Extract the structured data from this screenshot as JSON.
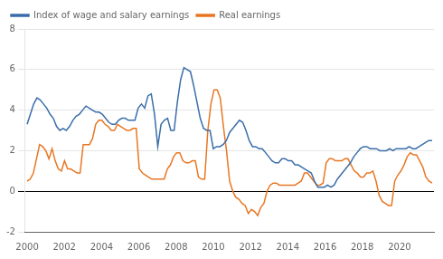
{
  "chart_data": {
    "type": "line",
    "series": [
      {
        "name": "Index of wage and salary earnings",
        "color": "#3a6eaa",
        "x": [
          2000,
          2000.175403,
          2000.350806,
          2000.52621,
          2000.701613,
          2000.877016,
          2001.052419,
          2001.227823,
          2001.403226,
          2001.578629,
          2001.754032,
          2001.929435,
          2002.104839,
          2002.280242,
          2002.455645,
          2002.631048,
          2002.806452,
          2002.981855,
          2003.157258,
          2003.332661,
          2003.508065,
          2003.683468,
          2003.858871,
          2004.034274,
          2004.209677,
          2004.385081,
          2004.560484,
          2004.735887,
          2004.91129,
          2005.086694,
          2005.262097,
          2005.4375,
          2005.612903,
          2005.788306,
          2005.96371,
          2006.139113,
          2006.314516,
          2006.489919,
          2006.665323,
          2006.840726,
          2007.016129,
          2007.191532,
          2007.366935,
          2007.542339,
          2007.717742,
          2007.893145,
          2008.068548,
          2008.243952,
          2008.419355,
          2008.594758,
          2008.770161,
          2008.945565,
          2009.120968,
          2009.296371,
          2009.471774,
          2009.647177,
          2009.822581,
          2009.997984,
          2010.173387,
          2010.34879,
          2010.524194,
          2010.699597,
          2010.875,
          2011.050403,
          2011.225806,
          2011.40121,
          2011.576613,
          2011.752016,
          2011.927419,
          2012.102823,
          2012.278226,
          2012.453629,
          2012.629032,
          2012.804435,
          2012.979839,
          2013.155242,
          2013.330645,
          2013.506048,
          2013.681452,
          2013.856855,
          2014.032258,
          2014.207661,
          2014.383065,
          2014.558468,
          2014.733871,
          2014.909274,
          2015.084677,
          2015.260081,
          2015.435484,
          2015.610887,
          2015.78629,
          2015.961694,
          2016.137097,
          2016.3125,
          2016.487903,
          2016.663306,
          2016.83871,
          2017.014113,
          2017.189516,
          2017.364919,
          2017.540323,
          2017.715726,
          2017.891129,
          2018.066532,
          2018.241935,
          2018.417339,
          2018.592742,
          2018.768145,
          2018.943548,
          2019.118952,
          2019.294355,
          2019.469758,
          2019.645161,
          2019.820565,
          2019.995968,
          2020.171371,
          2020.346774,
          2020.522177,
          2020.697581,
          2020.872984,
          2021.048387,
          2021.22379,
          2021.399194,
          2021.574597,
          2021.75
        ],
        "values": [
          3.3,
          3.8,
          4.3,
          4.6,
          4.5,
          4.3,
          4.1,
          3.8,
          3.6,
          3.2,
          3.0,
          3.1,
          3.0,
          3.2,
          3.5,
          3.7,
          3.8,
          4.0,
          4.2,
          4.1,
          4.0,
          3.9,
          3.9,
          3.8,
          3.6,
          3.4,
          3.3,
          3.3,
          3.5,
          3.6,
          3.6,
          3.5,
          3.5,
          3.5,
          4.1,
          4.3,
          4.1,
          4.7,
          4.8,
          3.8,
          2.2,
          3.3,
          3.5,
          3.6,
          3.0,
          3.0,
          4.4,
          5.5,
          6.1,
          6.0,
          5.9,
          5.2,
          4.4,
          3.6,
          3.1,
          3.0,
          3.0,
          2.1,
          2.2,
          2.2,
          2.3,
          2.5,
          2.9,
          3.1,
          3.3,
          3.5,
          3.4,
          3.0,
          2.5,
          2.2,
          2.2,
          2.1,
          2.1,
          1.9,
          1.7,
          1.5,
          1.4,
          1.4,
          1.6,
          1.6,
          1.5,
          1.5,
          1.3,
          1.3,
          1.2,
          1.1,
          1.0,
          0.9,
          0.5,
          0.2,
          0.2,
          0.2,
          0.3,
          0.2,
          0.3,
          0.6,
          0.8,
          1.0,
          1.2,
          1.4,
          1.7,
          1.9,
          2.1,
          2.2,
          2.2,
          2.1,
          2.1,
          2.1,
          2.0,
          2.0,
          2.0,
          2.1,
          2.0,
          2.1,
          2.1,
          2.1,
          2.1,
          2.2,
          2.1,
          2.1,
          2.2,
          2.3,
          2.4,
          2.5,
          2.5
        ]
      },
      {
        "name": "Real earnings",
        "color": "#e87722",
        "x": [
          2000,
          2000.167308,
          2000.334615,
          2000.501923,
          2000.669231,
          2000.836538,
          2001.003846,
          2001.171154,
          2001.338462,
          2001.505769,
          2001.673077,
          2001.840385,
          2002.007692,
          2002.175,
          2002.342308,
          2002.509615,
          2002.676923,
          2002.844231,
          2003.011538,
          2003.178846,
          2003.346154,
          2003.513462,
          2003.680769,
          2003.848077,
          2004.015385,
          2004.182692,
          2004.35,
          2004.517308,
          2004.684615,
          2004.851923,
          2005.019231,
          2005.186538,
          2005.353846,
          2005.521154,
          2005.688462,
          2005.855769,
          2006.023077,
          2006.190385,
          2006.357692,
          2006.525,
          2006.692308,
          2006.859615,
          2007.026923,
          2007.194231,
          2007.361538,
          2007.528846,
          2007.696154,
          2007.863462,
          2008.030769,
          2008.198077,
          2008.365385,
          2008.532692,
          2008.7,
          2008.867308,
          2009.034615,
          2009.201923,
          2009.369231,
          2009.536538,
          2009.703846,
          2009.871154,
          2010.038462,
          2010.205769,
          2010.373077,
          2010.540385,
          2010.707692,
          2010.875,
          2011.042308,
          2011.209615,
          2011.376923,
          2011.544231,
          2011.711538,
          2011.878846,
          2012.046154,
          2012.213462,
          2012.380769,
          2012.548077,
          2012.715385,
          2012.882692,
          2013.05,
          2013.217308,
          2013.384615,
          2013.551923,
          2013.719231,
          2013.886538,
          2014.053846,
          2014.221154,
          2014.388462,
          2014.555769,
          2014.723077,
          2014.890385,
          2015.057692,
          2015.225,
          2015.392308,
          2015.559615,
          2015.726923,
          2015.894231,
          2016.061538,
          2016.228846,
          2016.396154,
          2016.563462,
          2016.730769,
          2016.898077,
          2017.065385,
          2017.232692,
          2017.4,
          2017.567308,
          2017.734615,
          2017.901923,
          2018.069231,
          2018.236538,
          2018.403846,
          2018.571154,
          2018.738462,
          2018.905769,
          2019.073077,
          2019.240385,
          2019.407692,
          2019.575,
          2019.742308,
          2019.909615,
          2020.076923,
          2020.244231,
          2020.411538,
          2020.578846,
          2020.746154,
          2020.913462,
          2021.080769,
          2021.248077,
          2021.415385,
          2021.582692,
          2021.75
        ],
        "values": [
          0.5,
          0.6,
          0.9,
          1.6,
          2.3,
          2.2,
          2.0,
          1.6,
          2.1,
          1.5,
          1.1,
          1.0,
          1.5,
          1.1,
          1.1,
          1.0,
          0.9,
          0.9,
          2.3,
          2.3,
          2.3,
          2.6,
          3.3,
          3.5,
          3.5,
          3.3,
          3.2,
          3.0,
          3.0,
          3.3,
          3.2,
          3.1,
          3.0,
          3.0,
          3.1,
          3.1,
          1.1,
          0.9,
          0.8,
          0.7,
          0.6,
          0.6,
          0.6,
          0.6,
          0.6,
          1.1,
          1.3,
          1.7,
          1.9,
          1.9,
          1.5,
          1.4,
          1.4,
          1.5,
          1.5,
          0.7,
          0.6,
          0.6,
          3.0,
          4.3,
          5.0,
          5.0,
          4.6,
          3.2,
          2.0,
          0.5,
          0.0,
          -0.3,
          -0.4,
          -0.6,
          -0.7,
          -1.1,
          -0.9,
          -1.0,
          -1.2,
          -0.8,
          -0.6,
          0.0,
          0.3,
          0.4,
          0.4,
          0.3,
          0.3,
          0.3,
          0.3,
          0.3,
          0.3,
          0.4,
          0.5,
          0.9,
          0.9,
          0.7,
          0.5,
          0.3,
          0.3,
          0.4,
          1.4,
          1.6,
          1.6,
          1.5,
          1.5,
          1.5,
          1.6,
          1.6,
          1.3,
          1.0,
          0.9,
          0.7,
          0.7,
          0.9,
          0.9,
          1.0,
          0.5,
          -0.2,
          -0.5,
          -0.6,
          -0.7,
          -0.7,
          0.5,
          0.8,
          1.0,
          1.3,
          1.7,
          1.9,
          1.8,
          1.8,
          1.5,
          1.2,
          0.7,
          0.5,
          0.4
        ]
      }
    ],
    "xlim": [
      1999.9,
      2021.85
    ],
    "xticks": [
      2000,
      2002,
      2004,
      2006,
      2008,
      2010,
      2012,
      2014,
      2016,
      2018,
      2020
    ],
    "ylim": [
      -2,
      8
    ],
    "yticks": [
      -2,
      0,
      2,
      4,
      6,
      8
    ],
    "grid": "y",
    "legend": "upper left"
  }
}
